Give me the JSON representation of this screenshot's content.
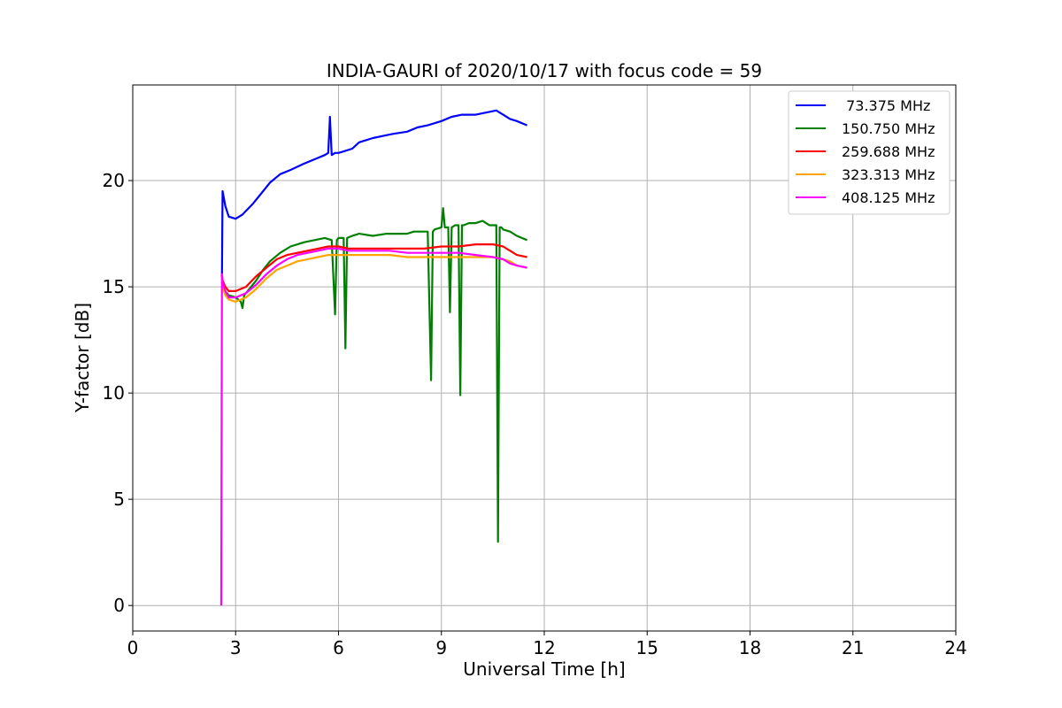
{
  "chart_data": {
    "type": "line",
    "title": "INDIA-GAURI of 2020/10/17 with focus code = 59",
    "xlabel": "Universal Time [h]",
    "ylabel": "Y-factor [dB]",
    "xlim": [
      0,
      24
    ],
    "ylim": [
      -1.2,
      24.5
    ],
    "xticks": [
      0,
      3,
      6,
      9,
      12,
      15,
      18,
      21,
      24
    ],
    "yticks": [
      0,
      5,
      10,
      15,
      20
    ],
    "grid": true,
    "legend_position": "upper-right",
    "series": [
      {
        "name": " 73.375 MHz",
        "color": "#0000ff",
        "x": [
          2.6,
          2.62,
          2.7,
          2.8,
          3.0,
          3.2,
          3.5,
          3.8,
          4.0,
          4.3,
          4.6,
          5.0,
          5.3,
          5.6,
          5.7,
          5.75,
          5.8,
          5.9,
          6.0,
          6.2,
          6.4,
          6.6,
          6.8,
          7.0,
          7.3,
          7.6,
          8.0,
          8.3,
          8.6,
          9.0,
          9.3,
          9.6,
          10.0,
          10.3,
          10.6,
          10.8,
          11.0,
          11.2,
          11.5
        ],
        "y": [
          15.5,
          19.5,
          18.8,
          18.3,
          18.2,
          18.4,
          18.9,
          19.5,
          19.9,
          20.3,
          20.5,
          20.8,
          21.0,
          21.2,
          21.3,
          23.0,
          21.2,
          21.3,
          21.3,
          21.4,
          21.5,
          21.8,
          21.9,
          22.0,
          22.1,
          22.2,
          22.3,
          22.5,
          22.6,
          22.8,
          23.0,
          23.1,
          23.1,
          23.2,
          23.3,
          23.1,
          22.9,
          22.8,
          22.6
        ]
      },
      {
        "name": "150.750 MHz",
        "color": "#008000",
        "x": [
          2.6,
          2.62,
          2.7,
          2.8,
          3.0,
          3.15,
          3.2,
          3.25,
          3.4,
          3.6,
          3.8,
          4.0,
          4.3,
          4.6,
          5.0,
          5.3,
          5.6,
          5.8,
          5.9,
          5.95,
          6.0,
          6.15,
          6.2,
          6.25,
          6.4,
          6.6,
          7.0,
          7.4,
          7.8,
          8.0,
          8.2,
          8.4,
          8.6,
          8.7,
          8.75,
          8.8,
          9.0,
          9.05,
          9.1,
          9.2,
          9.25,
          9.3,
          9.4,
          9.5,
          9.55,
          9.6,
          9.65,
          9.8,
          10.0,
          10.2,
          10.4,
          10.6,
          10.65,
          10.7,
          10.75,
          10.8,
          11.0,
          11.2,
          11.5
        ],
        "y": [
          15.5,
          15.0,
          14.8,
          14.6,
          14.5,
          14.3,
          14.0,
          14.6,
          14.9,
          15.3,
          15.8,
          16.2,
          16.6,
          16.9,
          17.1,
          17.2,
          17.3,
          17.2,
          13.7,
          17.2,
          17.3,
          17.3,
          12.1,
          17.3,
          17.4,
          17.5,
          17.4,
          17.5,
          17.5,
          17.5,
          17.6,
          17.6,
          17.6,
          10.6,
          17.6,
          17.7,
          17.8,
          18.7,
          17.8,
          17.8,
          13.8,
          17.8,
          17.9,
          17.9,
          9.9,
          17.9,
          17.9,
          18.0,
          18.0,
          18.1,
          17.9,
          17.9,
          3.0,
          17.8,
          17.8,
          17.7,
          17.6,
          17.4,
          17.2
        ]
      },
      {
        "name": "259.688 MHz",
        "color": "#ff0000",
        "x": [
          2.6,
          2.62,
          2.7,
          2.8,
          3.0,
          3.3,
          3.6,
          3.9,
          4.2,
          4.5,
          4.8,
          5.1,
          5.4,
          5.7,
          6.0,
          6.3,
          6.6,
          7.0,
          7.5,
          8.0,
          8.5,
          9.0,
          9.5,
          10.0,
          10.5,
          10.8,
          11.0,
          11.2,
          11.5
        ],
        "y": [
          15.6,
          15.3,
          15.0,
          14.8,
          14.8,
          15.0,
          15.5,
          15.9,
          16.3,
          16.5,
          16.6,
          16.7,
          16.8,
          16.9,
          16.9,
          16.8,
          16.8,
          16.8,
          16.8,
          16.8,
          16.8,
          16.9,
          16.9,
          17.0,
          17.0,
          16.9,
          16.7,
          16.5,
          16.4
        ]
      },
      {
        "name": "323.313 MHz",
        "color": "#ffa500",
        "x": [
          2.6,
          2.62,
          2.7,
          2.8,
          3.0,
          3.3,
          3.6,
          3.9,
          4.2,
          4.5,
          4.8,
          5.1,
          5.4,
          5.7,
          6.0,
          6.3,
          6.6,
          7.0,
          7.5,
          8.0,
          8.5,
          9.0,
          9.5,
          10.0,
          10.5,
          10.8,
          11.0,
          11.2,
          11.5
        ],
        "y": [
          15.3,
          15.0,
          14.6,
          14.4,
          14.3,
          14.5,
          14.9,
          15.4,
          15.8,
          16.0,
          16.2,
          16.3,
          16.4,
          16.5,
          16.5,
          16.5,
          16.5,
          16.5,
          16.5,
          16.4,
          16.4,
          16.4,
          16.4,
          16.4,
          16.4,
          16.3,
          16.2,
          16.0,
          15.9
        ]
      },
      {
        "name": "408.125 MHz",
        "color": "#ff00ff",
        "x": [
          2.58,
          2.6,
          2.62,
          2.7,
          2.8,
          3.0,
          3.3,
          3.6,
          3.9,
          4.2,
          4.5,
          4.8,
          5.1,
          5.4,
          5.7,
          6.0,
          6.3,
          6.6,
          7.0,
          7.5,
          8.0,
          8.5,
          9.0,
          9.5,
          10.0,
          10.5,
          10.8,
          11.0,
          11.2,
          11.5
        ],
        "y": [
          0.0,
          15.6,
          15.2,
          14.8,
          14.5,
          14.5,
          14.7,
          15.1,
          15.6,
          16.0,
          16.3,
          16.5,
          16.6,
          16.7,
          16.8,
          16.8,
          16.7,
          16.7,
          16.7,
          16.7,
          16.6,
          16.6,
          16.6,
          16.6,
          16.5,
          16.4,
          16.3,
          16.1,
          16.0,
          15.9
        ]
      }
    ]
  }
}
